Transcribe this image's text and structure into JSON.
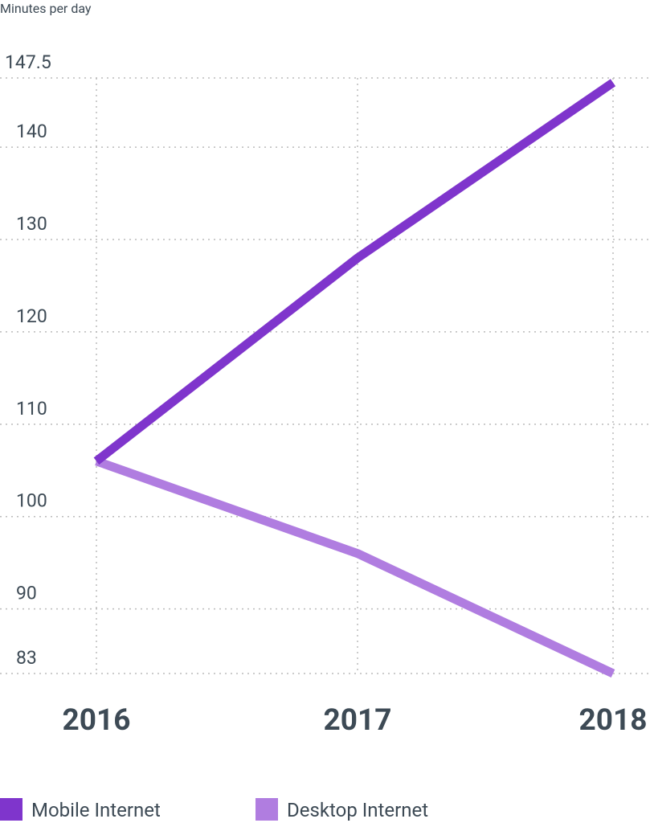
{
  "chart_data": {
    "type": "line",
    "y_axis_label": "Minutes per day",
    "categories": [
      "2016",
      "2017",
      "2018"
    ],
    "series": [
      {
        "name": "Mobile Internet",
        "color": "#7f35cc",
        "values": [
          106,
          128,
          147
        ]
      },
      {
        "name": "Desktop Internet",
        "color": "#b07de0",
        "values": [
          106,
          96,
          83
        ]
      }
    ],
    "ylim": [
      83,
      147.5
    ],
    "yticks": [
      83,
      90,
      100,
      110,
      120,
      130,
      140,
      147.5
    ],
    "grid": true
  }
}
